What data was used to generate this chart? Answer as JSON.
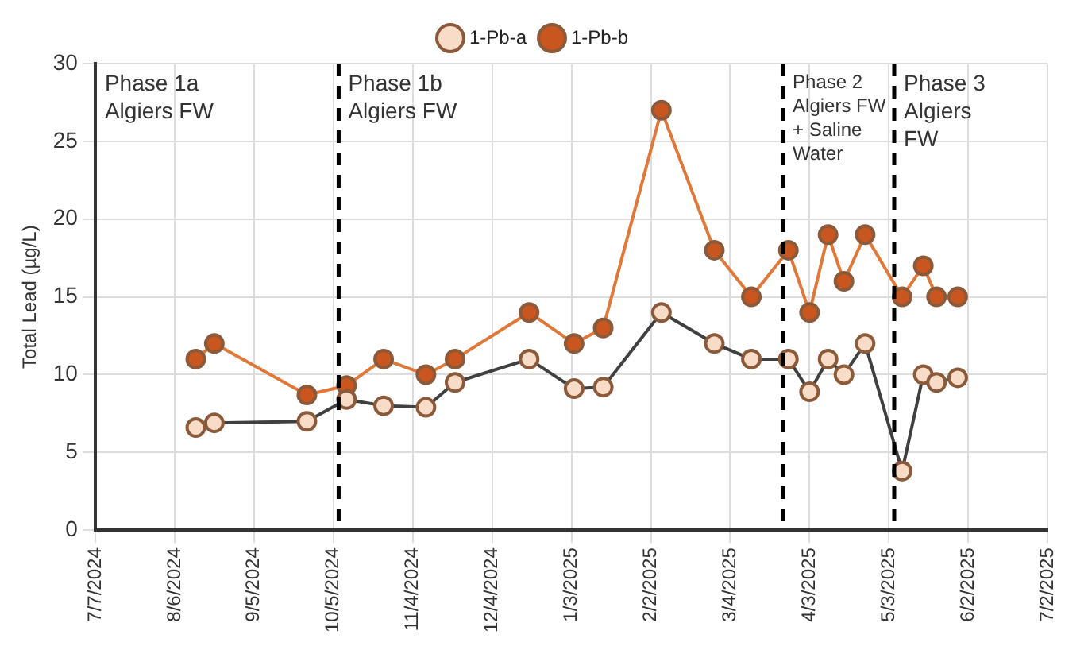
{
  "chart_data": {
    "type": "line",
    "ylabel": "Total Lead (µg/L)",
    "x": [
      "2024-08-14",
      "2024-08-21",
      "2024-09-25",
      "2024-10-10",
      "2024-10-24",
      "2024-11-09",
      "2024-11-20",
      "2024-12-18",
      "2025-01-04",
      "2025-01-15",
      "2025-02-06",
      "2025-02-26",
      "2025-03-12",
      "2025-03-26",
      "2025-04-03",
      "2025-04-10",
      "2025-04-16",
      "2025-04-24",
      "2025-05-08",
      "2025-05-16",
      "2025-05-21",
      "2025-05-29"
    ],
    "series": [
      {
        "name": "1-Pb-a",
        "color": "#404040",
        "colors": [
          "#f8dcc8",
          "#f8dcc8",
          "#f8dcc8",
          "#f8dcc8",
          "#f8dcc8",
          "#f8dcc8",
          "#f8dcc8",
          "#f8dcc8",
          "#f8dcc8",
          "#f8dcc8",
          "#f8dcc8",
          "#f8dcc8",
          "#f8dcc8",
          "#f8dcc8",
          "#f8dcc8",
          "#f8dcc8",
          "#f8dcc8",
          "#f8dcc8",
          "#f8dcc8",
          "#f8dcc8",
          "#f8dcc8",
          "#f8dcc8"
        ],
        "values": [
          6.6,
          6.9,
          7.0,
          8.4,
          8.0,
          7.9,
          9.5,
          11,
          9.1,
          9.2,
          14,
          12,
          11,
          11,
          8.9,
          11,
          10,
          12,
          3.8,
          10,
          9.5,
          9.8
        ]
      },
      {
        "name": "1-Pb-b",
        "color": "#e0783a",
        "colors": [
          "#c8561e",
          "#c8561e",
          "#c8561e",
          "#c8561e",
          "#c8561e",
          "#c8561e",
          "#c8561e",
          "#c8561e",
          "#c8561e",
          "#c8561e",
          "#c8561e",
          "#c8561e",
          "#c8561e",
          "#c8561e",
          "#c8561e",
          "#c8561e",
          "#c8561e",
          "#c8561e",
          "#c8561e",
          "#c8561e",
          "#c8561e",
          "#c8561e"
        ],
        "values": [
          11,
          12,
          8.7,
          9.3,
          11,
          10,
          11,
          14,
          12,
          13,
          27,
          18,
          15,
          18,
          14,
          19,
          16,
          19,
          15,
          17,
          15,
          15
        ]
      }
    ],
    "xlim": [
      "2024-07-07",
      "2025-07-02"
    ],
    "xticks": [
      {
        "value": "2024-07-07",
        "label": "7/7/2024"
      },
      {
        "value": "2024-08-06",
        "label": "8/6/2024"
      },
      {
        "value": "2024-09-05",
        "label": "9/5/2024"
      },
      {
        "value": "2024-10-05",
        "label": "10/5/2024"
      },
      {
        "value": "2024-11-04",
        "label": "11/4/2024"
      },
      {
        "value": "2024-12-04",
        "label": "12/4/2024"
      },
      {
        "value": "2025-01-03",
        "label": "1/3/2025"
      },
      {
        "value": "2025-02-02",
        "label": "2/2/2025"
      },
      {
        "value": "2025-03-04",
        "label": "3/4/2025"
      },
      {
        "value": "2025-04-03",
        "label": "4/3/2025"
      },
      {
        "value": "2025-05-03",
        "label": "5/3/2025"
      },
      {
        "value": "2025-06-02",
        "label": "6/2/2025"
      },
      {
        "value": "2025-07-02",
        "label": "7/2/2025"
      }
    ],
    "ylim": [
      0,
      30
    ],
    "yticks": [
      0,
      5,
      10,
      15,
      20,
      25,
      30
    ],
    "grid": true,
    "legend": "top",
    "marker": "circle",
    "line_style": "solid",
    "ref_lines": [
      {
        "axis": "x",
        "value": "2024-10-07",
        "line_style": "dashed",
        "color": "#000000"
      },
      {
        "axis": "x",
        "value": "2025-03-24",
        "line_style": "dashed",
        "color": "#000000"
      },
      {
        "axis": "x",
        "value": "2025-05-05",
        "line_style": "dashed",
        "color": "#000000"
      }
    ],
    "annotations": [
      "Phase 1a\nAlgiers FW",
      "Phase 1b\nAlgiers FW",
      "Phase 2\nAlgiers FW\n+ Saline\nWater",
      "Phase 3\nAlgiers\nFW"
    ]
  }
}
